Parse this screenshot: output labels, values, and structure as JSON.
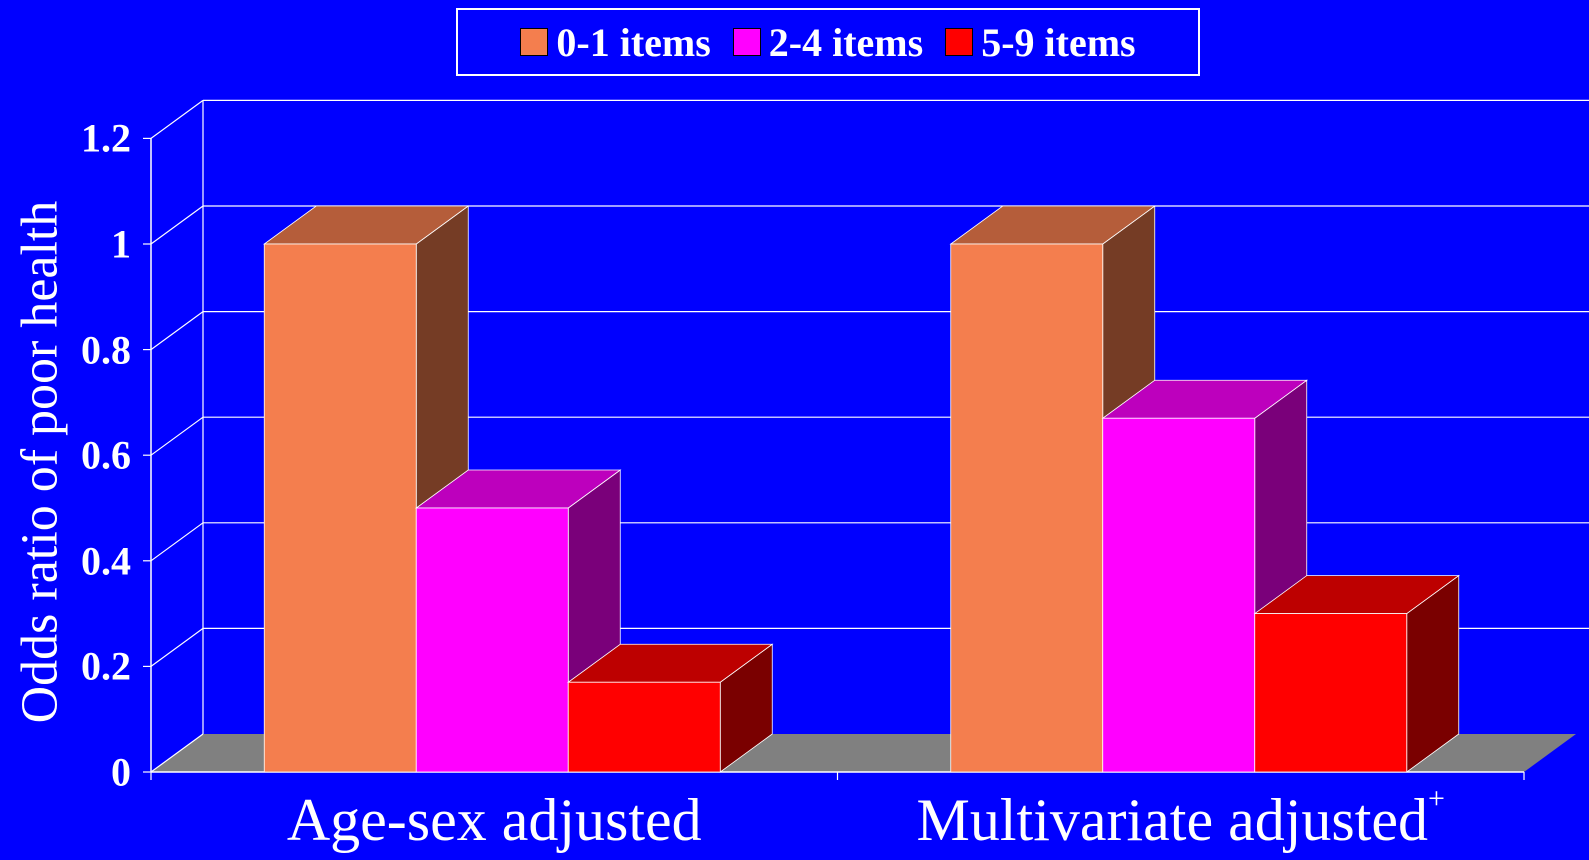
{
  "chart_data": {
    "type": "bar",
    "style": "3d-clustered",
    "title": "",
    "xlabel": "",
    "ylabel": "Odds ratio of poor health",
    "ylim": [
      0,
      1.2
    ],
    "yticks": [
      "0",
      "0.2",
      "0.4",
      "0.6",
      "0.8",
      "1",
      "1.2"
    ],
    "grid": true,
    "legend_position": "top-center",
    "categories": [
      {
        "label": "Age-sex adjusted",
        "superscript": ""
      },
      {
        "label": "Multivariate adjusted",
        "superscript": "+"
      }
    ],
    "series": [
      {
        "name": "0-1 items",
        "values": [
          1.0,
          1.0
        ],
        "color": "#F47E4E"
      },
      {
        "name": "2-4 items",
        "values": [
          0.5,
          0.67
        ],
        "color": "#FF00FF"
      },
      {
        "name": "5-9 items",
        "values": [
          0.17,
          0.3
        ],
        "color": "#FF0000"
      }
    ],
    "colors": {
      "background": "#0000FF",
      "floor": "#808080",
      "grid": "#FFFFFF",
      "text": "#FFFFFF"
    }
  }
}
